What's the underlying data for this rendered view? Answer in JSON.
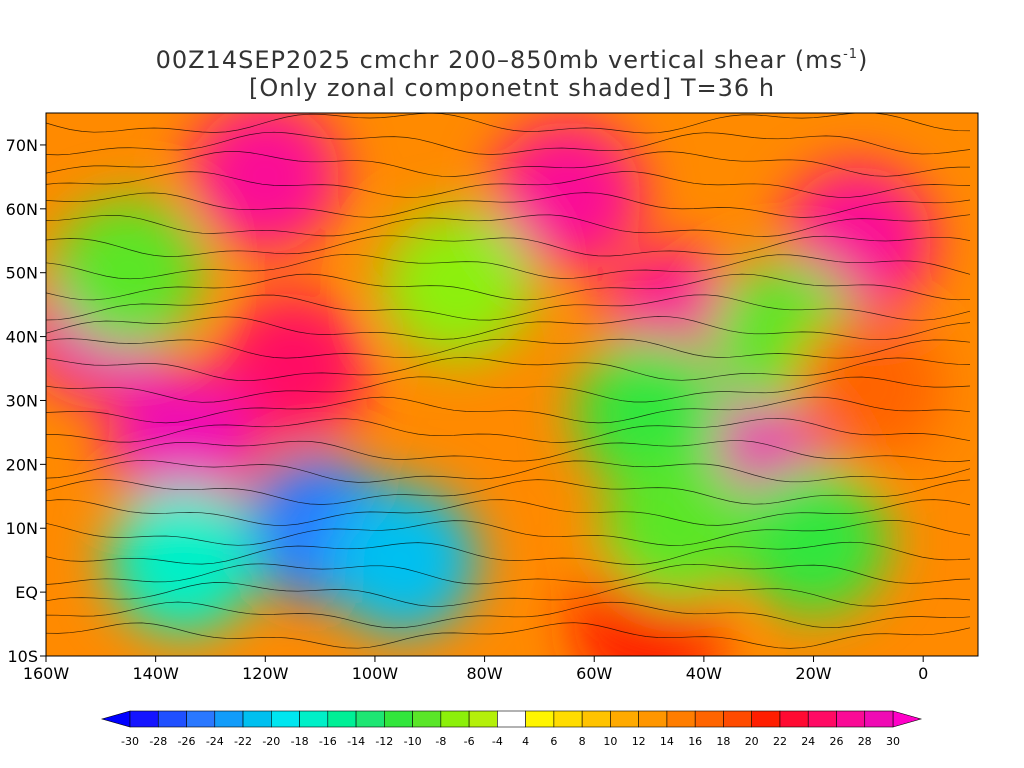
{
  "title": {
    "line1_prefix": "00Z14SEP2025 cmchr 200–850mb vertical shear (ms",
    "line1_sup": "-1",
    "line1_suffix": ")",
    "line2": "[Only zonal componetnt shaded] T=36 h"
  },
  "map": {
    "lon_range": [
      -160,
      10
    ],
    "lat_range": [
      -10,
      75
    ],
    "x_ticks": [
      {
        "lon": -160,
        "label": "160W"
      },
      {
        "lon": -140,
        "label": "140W"
      },
      {
        "lon": -120,
        "label": "120W"
      },
      {
        "lon": -100,
        "label": "100W"
      },
      {
        "lon": -80,
        "label": "80W"
      },
      {
        "lon": -60,
        "label": "60W"
      },
      {
        "lon": -40,
        "label": "40W"
      },
      {
        "lon": -20,
        "label": "20W"
      },
      {
        "lon": 0,
        "label": "0"
      }
    ],
    "y_ticks": [
      {
        "lat": 70,
        "label": "70N"
      },
      {
        "lat": 60,
        "label": "60N"
      },
      {
        "lat": 50,
        "label": "50N"
      },
      {
        "lat": 40,
        "label": "40N"
      },
      {
        "lat": 30,
        "label": "30N"
      },
      {
        "lat": 20,
        "label": "20N"
      },
      {
        "lat": 10,
        "label": "10N"
      },
      {
        "lat": 0,
        "label": "EQ"
      },
      {
        "lat": -10,
        "label": "10S"
      }
    ],
    "shading_regions": [
      {
        "lon": -150,
        "lat": 42,
        "value": 28
      },
      {
        "lon": -120,
        "lat": 65,
        "value": 26
      },
      {
        "lon": -65,
        "lat": 62,
        "value": 27
      },
      {
        "lon": -12,
        "lat": 55,
        "value": 27
      },
      {
        "lon": -45,
        "lat": 42,
        "value": 26
      },
      {
        "lon": -115,
        "lat": 35,
        "value": 24
      },
      {
        "lon": -135,
        "lat": 23,
        "value": 28
      },
      {
        "lon": -30,
        "lat": 22,
        "value": 28
      },
      {
        "lon": -50,
        "lat": -5,
        "value": 20
      },
      {
        "lon": -145,
        "lat": 50,
        "value": -10
      },
      {
        "lon": -110,
        "lat": 10,
        "value": -26
      },
      {
        "lon": -95,
        "lat": 5,
        "value": -22
      },
      {
        "lon": -135,
        "lat": 5,
        "value": -18
      },
      {
        "lon": -25,
        "lat": 40,
        "value": -10
      },
      {
        "lon": -50,
        "lat": 28,
        "value": -12
      },
      {
        "lon": -20,
        "lat": 8,
        "value": -12
      },
      {
        "lon": -45,
        "lat": 10,
        "value": -10
      },
      {
        "lon": -85,
        "lat": 48,
        "value": -8
      },
      {
        "lon": -10,
        "lat": 32,
        "value": 16
      }
    ]
  },
  "colorbar": {
    "labels": [
      "-30",
      "-28",
      "-26",
      "-24",
      "-22",
      "-20",
      "-18",
      "-16",
      "-14",
      "-12",
      "-10",
      "-8",
      "-6",
      "-4",
      "4",
      "6",
      "8",
      "10",
      "12",
      "14",
      "16",
      "18",
      "20",
      "22",
      "24",
      "26",
      "28",
      "30"
    ],
    "colors": [
      "#1414ff",
      "#1f50ff",
      "#2a78ff",
      "#129cfa",
      "#00c0f0",
      "#00e6f0",
      "#00f0c8",
      "#00f096",
      "#1ee673",
      "#32e63c",
      "#5ae628",
      "#8cf00a",
      "#b4f00a",
      "#ffffff",
      "#fff500",
      "#ffdc00",
      "#ffc300",
      "#ffaa00",
      "#ff9600",
      "#ff7d00",
      "#ff6400",
      "#ff4b00",
      "#ff1e00",
      "#ff0a32",
      "#ff0a64",
      "#fa0a96",
      "#f00ab4"
    ],
    "left_arrow_color": "#0000ff",
    "right_arrow_color": "#ff00c8"
  }
}
